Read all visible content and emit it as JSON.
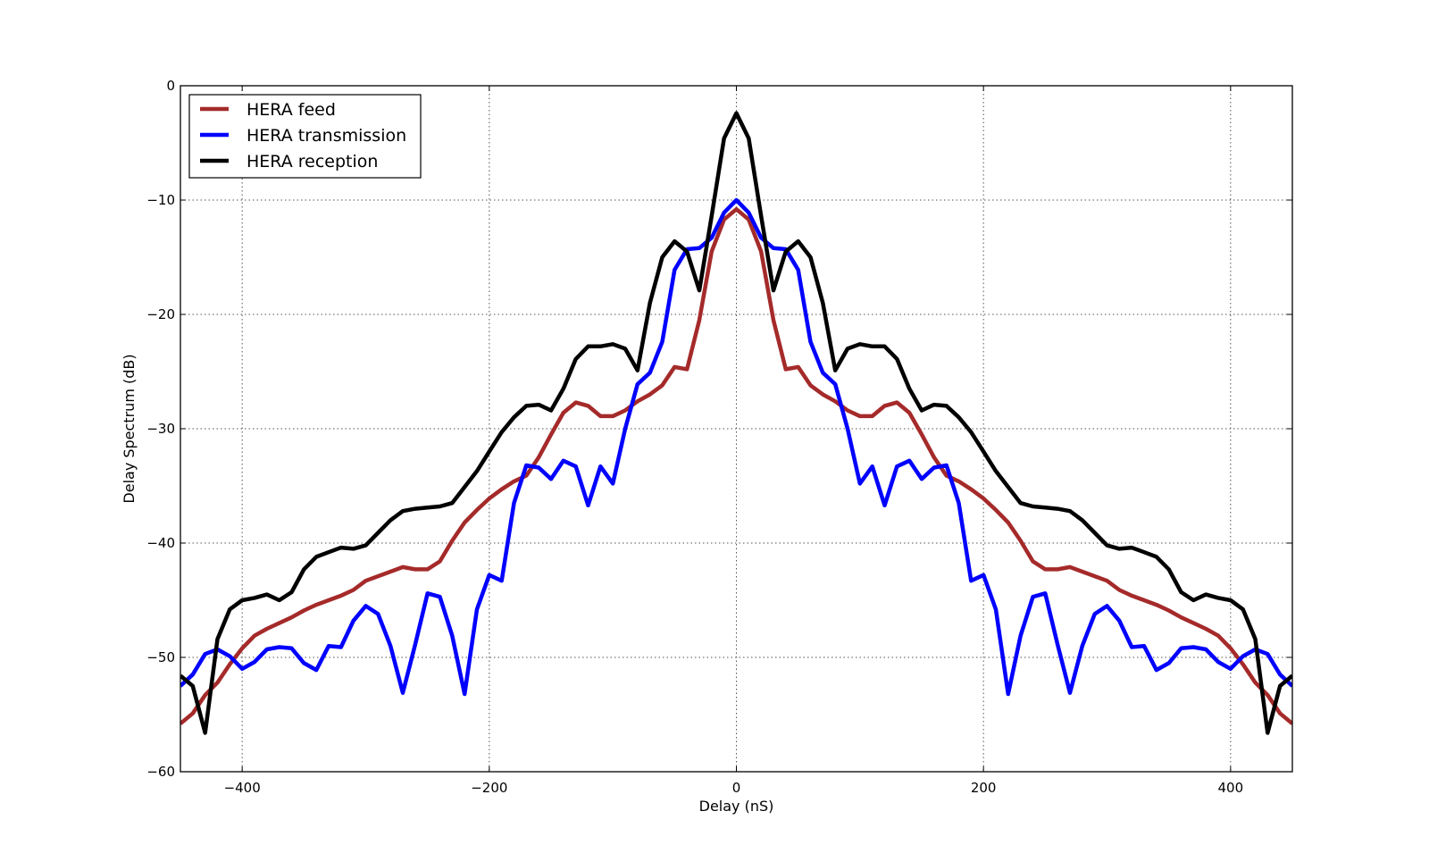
{
  "chart_data": {
    "type": "line",
    "title": "",
    "xlabel": "Delay (nS)",
    "ylabel": "Delay Spectrum (dB)",
    "xlim": [
      -450,
      450
    ],
    "ylim": [
      -60,
      0
    ],
    "xticks": [
      -400,
      -200,
      0,
      200,
      400
    ],
    "yticks": [
      0,
      -10,
      -20,
      -30,
      -40,
      -50,
      -60
    ],
    "xtick_labels": [
      "−400",
      "−200",
      "0",
      "200",
      "400"
    ],
    "ytick_labels": [
      "0",
      "−10",
      "−20",
      "−30",
      "−40",
      "−50",
      "−60"
    ],
    "grid": true,
    "legend_position": "top-left",
    "x": [
      -450,
      -440,
      -430,
      -420,
      -410,
      -400,
      -390,
      -380,
      -370,
      -360,
      -350,
      -340,
      -330,
      -320,
      -310,
      -300,
      -290,
      -280,
      -270,
      -260,
      -250,
      -240,
      -230,
      -220,
      -210,
      -200,
      -190,
      -180,
      -170,
      -160,
      -150,
      -140,
      -130,
      -120,
      -110,
      -100,
      -90,
      -80,
      -70,
      -60,
      -50,
      -40,
      -30,
      -20,
      -10,
      0,
      10,
      20,
      30,
      40,
      50,
      60,
      70,
      80,
      90,
      100,
      110,
      120,
      130,
      140,
      150,
      160,
      170,
      180,
      190,
      200,
      210,
      220,
      230,
      240,
      250,
      260,
      270,
      280,
      290,
      300,
      310,
      320,
      330,
      340,
      350,
      360,
      370,
      380,
      390,
      400,
      410,
      420,
      430,
      440,
      450
    ],
    "series": [
      {
        "name": "HERA feed",
        "color": "#a52a2a",
        "values": [
          -55.8,
          -54.9,
          -53.3,
          -52.2,
          -50.6,
          -49.2,
          -48.1,
          -47.5,
          -47.0,
          -46.5,
          -45.9,
          -45.4,
          -45.0,
          -44.6,
          -44.1,
          -43.3,
          -42.9,
          -42.5,
          -42.1,
          -42.3,
          -42.3,
          -41.6,
          -39.8,
          -38.2,
          -37.1,
          -36.1,
          -35.3,
          -34.6,
          -34.1,
          -32.5,
          -30.5,
          -28.6,
          -27.7,
          -28.0,
          -28.9,
          -28.9,
          -28.4,
          -27.6,
          -27.0,
          -26.2,
          -24.6,
          -24.8,
          -20.5,
          -14.5,
          -11.7,
          -10.8,
          -11.7,
          -14.5,
          -20.5,
          -24.8,
          -24.6,
          -26.2,
          -27.0,
          -27.6,
          -28.4,
          -28.9,
          -28.9,
          -28.0,
          -27.7,
          -28.6,
          -30.5,
          -32.5,
          -34.1,
          -34.6,
          -35.3,
          -36.1,
          -37.1,
          -38.2,
          -39.8,
          -41.6,
          -42.3,
          -42.3,
          -42.1,
          -42.5,
          -42.9,
          -43.3,
          -44.1,
          -44.6,
          -45.0,
          -45.4,
          -45.9,
          -46.5,
          -47.0,
          -47.5,
          -48.1,
          -49.2,
          -50.6,
          -52.2,
          -53.3,
          -54.9,
          -55.8
        ]
      },
      {
        "name": "HERA transmission",
        "color": "#0000ff",
        "values": [
          -52.5,
          -51.5,
          -49.7,
          -49.3,
          -49.9,
          -51.0,
          -50.4,
          -49.3,
          -49.1,
          -49.2,
          -50.5,
          -51.1,
          -49.0,
          -49.1,
          -46.8,
          -45.5,
          -46.2,
          -49.0,
          -53.1,
          -48.9,
          -44.4,
          -44.7,
          -48.1,
          -53.2,
          -45.8,
          -42.8,
          -43.3,
          -36.5,
          -33.2,
          -33.4,
          -34.4,
          -32.8,
          -33.3,
          -36.7,
          -33.3,
          -34.8,
          -30.0,
          -26.1,
          -25.1,
          -22.4,
          -16.1,
          -14.3,
          -14.2,
          -13.3,
          -11.1,
          -10.0,
          -11.1,
          -13.3,
          -14.2,
          -14.3,
          -16.1,
          -22.4,
          -25.1,
          -26.1,
          -30.0,
          -34.8,
          -33.3,
          -36.7,
          -33.3,
          -32.8,
          -34.4,
          -33.4,
          -33.2,
          -36.5,
          -43.3,
          -42.8,
          -45.8,
          -53.2,
          -48.1,
          -44.7,
          -44.4,
          -48.9,
          -53.1,
          -49.0,
          -46.2,
          -45.5,
          -46.8,
          -49.1,
          -49.0,
          -51.1,
          -50.5,
          -49.2,
          -49.1,
          -49.3,
          -50.4,
          -51.0,
          -49.9,
          -49.3,
          -49.7,
          -51.5,
          -52.5
        ]
      },
      {
        "name": "HERA reception",
        "color": "#000000",
        "values": [
          -51.6,
          -52.5,
          -56.6,
          -48.4,
          -45.8,
          -45.0,
          -44.8,
          -44.5,
          -45.0,
          -44.3,
          -42.3,
          -41.2,
          -40.8,
          -40.4,
          -40.5,
          -40.2,
          -39.1,
          -38.0,
          -37.2,
          -37.0,
          -36.9,
          -36.8,
          -36.5,
          -35.1,
          -33.7,
          -32.0,
          -30.3,
          -29.0,
          -28.0,
          -27.9,
          -28.4,
          -26.5,
          -23.9,
          -22.8,
          -22.8,
          -22.6,
          -23.0,
          -24.9,
          -19.0,
          -15.0,
          -13.6,
          -14.5,
          -17.9,
          -11.4,
          -4.6,
          -2.4,
          -4.6,
          -11.4,
          -17.9,
          -14.5,
          -13.6,
          -15.0,
          -19.0,
          -24.9,
          -23.0,
          -22.6,
          -22.8,
          -22.8,
          -23.9,
          -26.5,
          -28.4,
          -27.9,
          -28.0,
          -29.0,
          -30.3,
          -32.0,
          -33.7,
          -35.1,
          -36.5,
          -36.8,
          -36.9,
          -37.0,
          -37.2,
          -38.0,
          -39.1,
          -40.2,
          -40.5,
          -40.4,
          -40.8,
          -41.2,
          -42.3,
          -44.3,
          -45.0,
          -44.5,
          -44.8,
          -45.0,
          -45.8,
          -48.4,
          -56.6,
          -52.5,
          -51.6
        ]
      }
    ]
  }
}
